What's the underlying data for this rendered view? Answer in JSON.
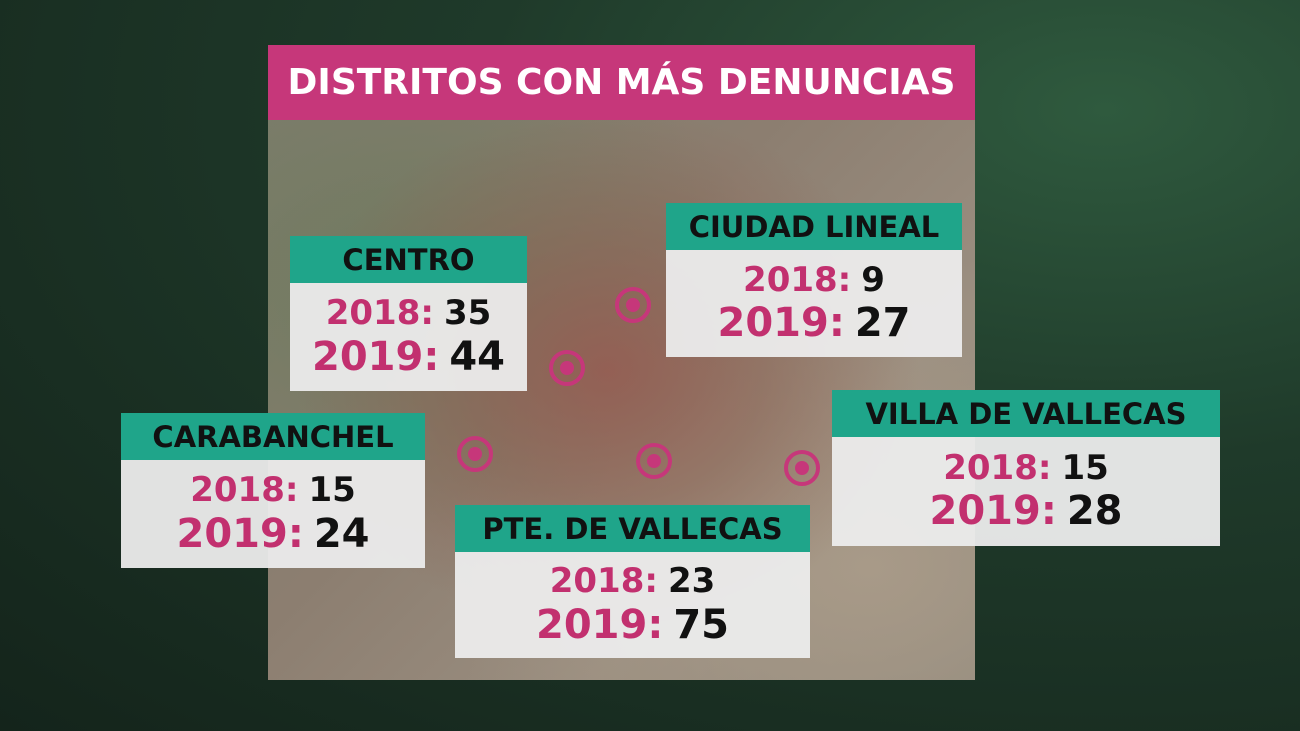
{
  "title": "DISTRITOS CON MÁS DENUNCIAS",
  "districts": [
    {
      "name": "CENTRO",
      "rows": [
        {
          "label": "2018:",
          "value": 35
        },
        {
          "label": "2019:",
          "value": 44
        }
      ]
    },
    {
      "name": "CIUDAD LINEAL",
      "rows": [
        {
          "label": "2018:",
          "value": 9
        },
        {
          "label": "2019:",
          "value": 27
        }
      ]
    },
    {
      "name": "CARABANCHEL",
      "rows": [
        {
          "label": "2018:",
          "value": 15
        },
        {
          "label": "2019:",
          "value": 24
        }
      ]
    },
    {
      "name": "PTE. DE VALLECAS",
      "rows": [
        {
          "label": "2018:",
          "value": 23
        },
        {
          "label": "2019:",
          "value": 75
        }
      ]
    },
    {
      "name": "VILLA DE VALLECAS",
      "rows": [
        {
          "label": "2018:",
          "value": 15
        },
        {
          "label": "2019:",
          "value": 28
        }
      ]
    }
  ]
}
